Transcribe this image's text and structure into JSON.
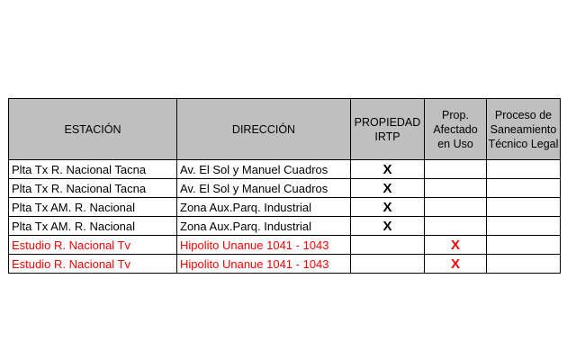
{
  "table": {
    "headers": {
      "estacion": "ESTACIÓN",
      "direccion": "DIRECCIÓN",
      "propiedad": [
        "PROPIEDAD",
        "IRTP"
      ],
      "afectado": [
        "Prop.",
        "Afectado",
        "en Uso"
      ],
      "saneamiento": [
        "Proceso de",
        "Saneamiento",
        "Técnico Legal"
      ]
    },
    "rows": [
      {
        "estacion": "Plta Tx R. Nacional Tacna",
        "direccion": "Av. El Sol y Manuel Cuadros",
        "propiedad": "X",
        "afectado": "",
        "saneamiento": ""
      },
      {
        "estacion": "Plta Tx R. Nacional Tacna",
        "direccion": "Av. El Sol y Manuel Cuadros",
        "propiedad": "X",
        "afectado": "",
        "saneamiento": ""
      },
      {
        "estacion": "Plta Tx AM. R. Nacional",
        "direccion": "Zona Aux.Parq. Industrial",
        "propiedad": "X",
        "afectado": "",
        "saneamiento": ""
      },
      {
        "estacion": "Plta Tx AM. R. Nacional",
        "direccion": "Zona Aux.Parq. Industrial",
        "propiedad": "X",
        "afectado": "",
        "saneamiento": ""
      },
      {
        "estacion": "Estudio R. Nacional Tv",
        "direccion": "Hipolito Unanue 1041 - 1043",
        "propiedad": "",
        "afectado": "X",
        "saneamiento": ""
      },
      {
        "estacion": "Estudio R. Nacional Tv",
        "direccion": "Hipolito Unanue 1041 - 1043",
        "propiedad": "",
        "afectado": "X",
        "saneamiento": ""
      }
    ]
  },
  "colors": {
    "header_bg": "#bfbfbf",
    "highlight_text": "#ff0000",
    "border": "#000000"
  }
}
